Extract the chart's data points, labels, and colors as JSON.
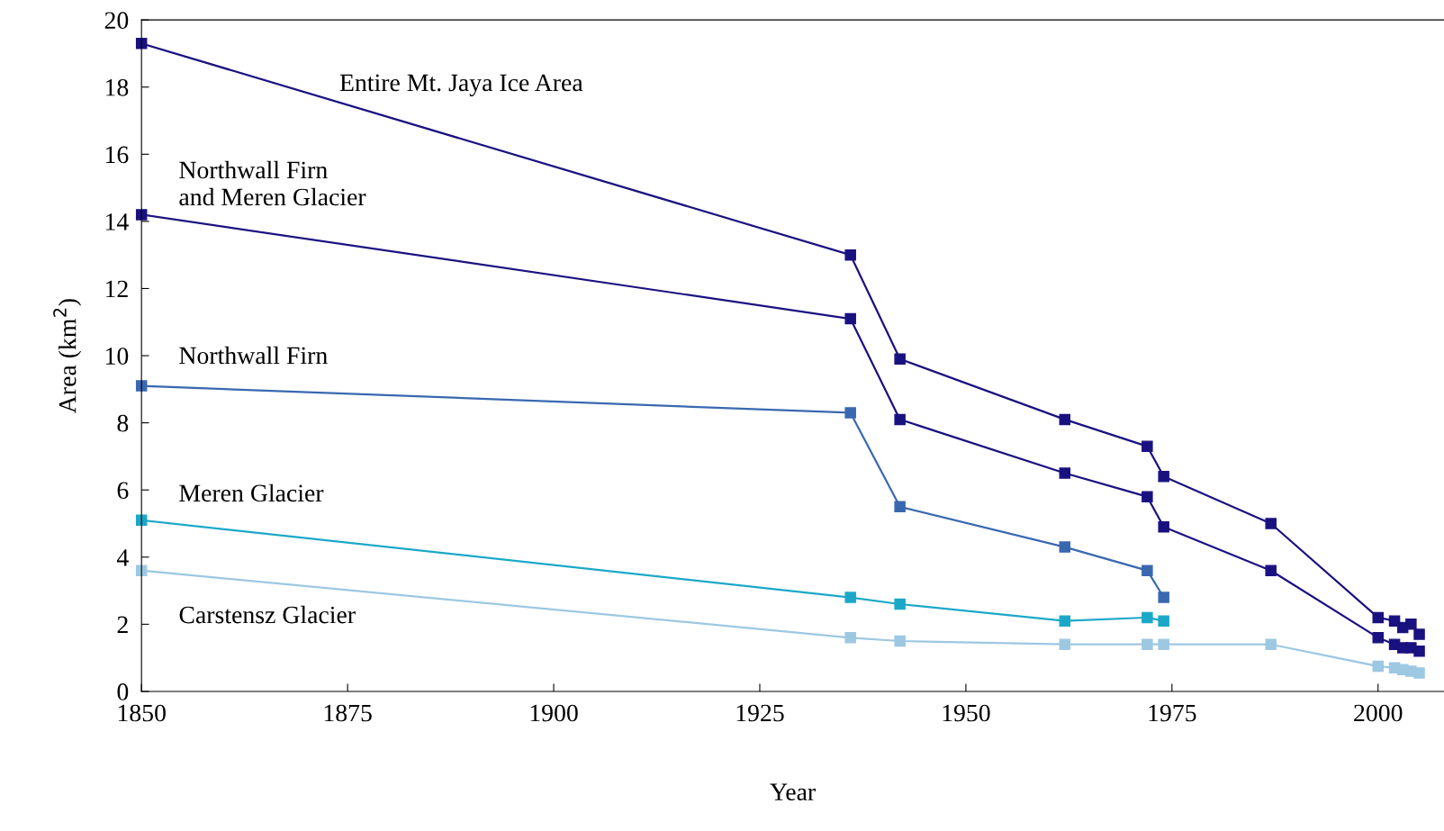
{
  "chart_data": {
    "type": "line",
    "xlabel": "Year",
    "ylabel": "Area (km$^{2}$)",
    "xlim": [
      1850,
      2008
    ],
    "xticks": [
      1850,
      1875,
      1900,
      1925,
      1950,
      1975,
      2000
    ],
    "ylim": [
      0,
      20
    ],
    "yticks": [
      0,
      2,
      4,
      6,
      8,
      10,
      12,
      14,
      16,
      18,
      20
    ],
    "grid": false,
    "legend": false,
    "marker": "square",
    "line_style": "solid",
    "series": [
      {
        "name": "Entire Mt. Jaya Ice Area",
        "color": "#1a1180",
        "x": [
          1850,
          1936,
          1942,
          1962,
          1972,
          1974,
          1987,
          2000,
          2002,
          2003,
          2004,
          2005
        ],
        "values": [
          19.3,
          13.0,
          9.9,
          8.1,
          7.3,
          6.4,
          5.0,
          2.2,
          2.1,
          1.9,
          2.0,
          1.7
        ]
      },
      {
        "name": "Northwall Firn\nand Meren Glacier",
        "color": "#1a1180",
        "x": [
          1850,
          1936,
          1942,
          1962,
          1972,
          1974,
          1987,
          2000,
          2002,
          2003,
          2004,
          2005
        ],
        "values": [
          14.2,
          11.1,
          8.1,
          6.5,
          5.8,
          4.9,
          3.6,
          1.6,
          1.4,
          1.3,
          1.3,
          1.2
        ]
      },
      {
        "name": "Northwall Firn",
        "color": "#3a68b0",
        "x": [
          1850,
          1936,
          1942,
          1962,
          1972,
          1974
        ],
        "values": [
          9.1,
          8.3,
          5.5,
          4.3,
          3.6,
          2.8
        ]
      },
      {
        "name": "Meren Glacier",
        "color": "#1ba8c8",
        "x": [
          1850,
          1936,
          1942,
          1962,
          1972,
          1974
        ],
        "values": [
          5.1,
          2.8,
          2.6,
          2.1,
          2.2,
          2.1
        ]
      },
      {
        "name": "Carstensz Glacier",
        "color": "#9dc8e2",
        "x": [
          1850,
          1936,
          1942,
          1962,
          1972,
          1974,
          1987,
          2000,
          2002,
          2003,
          2004,
          2005
        ],
        "values": [
          3.6,
          1.6,
          1.5,
          1.4,
          1.4,
          1.4,
          1.4,
          0.75,
          0.7,
          0.65,
          0.6,
          0.55
        ]
      }
    ]
  }
}
